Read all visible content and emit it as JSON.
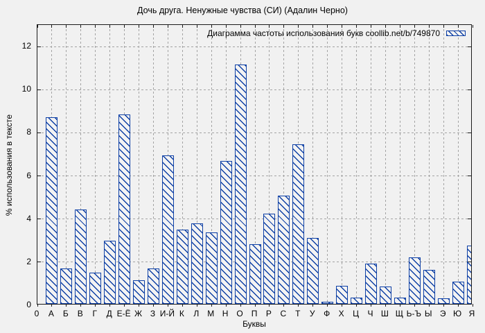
{
  "title": "Дочь друга. Ненужные чувства (СИ) (Адалин Черно)",
  "legend_label": "Диаграмма частоты использования букв coollib.net/b/749870",
  "colors": {
    "bar_blue": "#0d3fa5",
    "grid_gray": "#a3a3a3",
    "background": "#f1f1f1",
    "border": "#1a1a1a"
  },
  "chart_data": {
    "type": "bar",
    "title": "Дочь друга. Ненужные чувства (СИ) (Адалин Черно)",
    "legend": "Диаграмма частоты использования букв coollib.net/b/749870",
    "legend_position": "top-right",
    "xlabel": "Буквы",
    "ylabel": "% использования в тексте",
    "origin_tick_label": "0",
    "categories": [
      "А",
      "Б",
      "В",
      "Г",
      "Д",
      "Е-Ё",
      "Ж",
      "З",
      "И-Й",
      "К",
      "Л",
      "М",
      "Н",
      "О",
      "П",
      "Р",
      "С",
      "Т",
      "У",
      "Ф",
      "Х",
      "Ц",
      "Ч",
      "Ш",
      "Щ",
      "Ь-Ъ",
      "Ы",
      "Э",
      "Ю",
      "Я"
    ],
    "values": [
      8.65,
      1.63,
      4.38,
      1.45,
      2.93,
      8.78,
      1.1,
      1.64,
      6.9,
      3.44,
      3.73,
      3.32,
      6.63,
      11.1,
      2.76,
      4.19,
      5.02,
      7.4,
      3.07,
      0.1,
      0.83,
      0.3,
      1.87,
      0.8,
      0.28,
      2.17,
      1.58,
      0.25,
      1.04,
      2.71
    ],
    "yticks": [
      0,
      2,
      4,
      6,
      8,
      10,
      12
    ],
    "ylim": [
      0,
      13
    ],
    "grid": true,
    "grid_style": "dashed",
    "bar_style": "diagonal-hatch"
  }
}
